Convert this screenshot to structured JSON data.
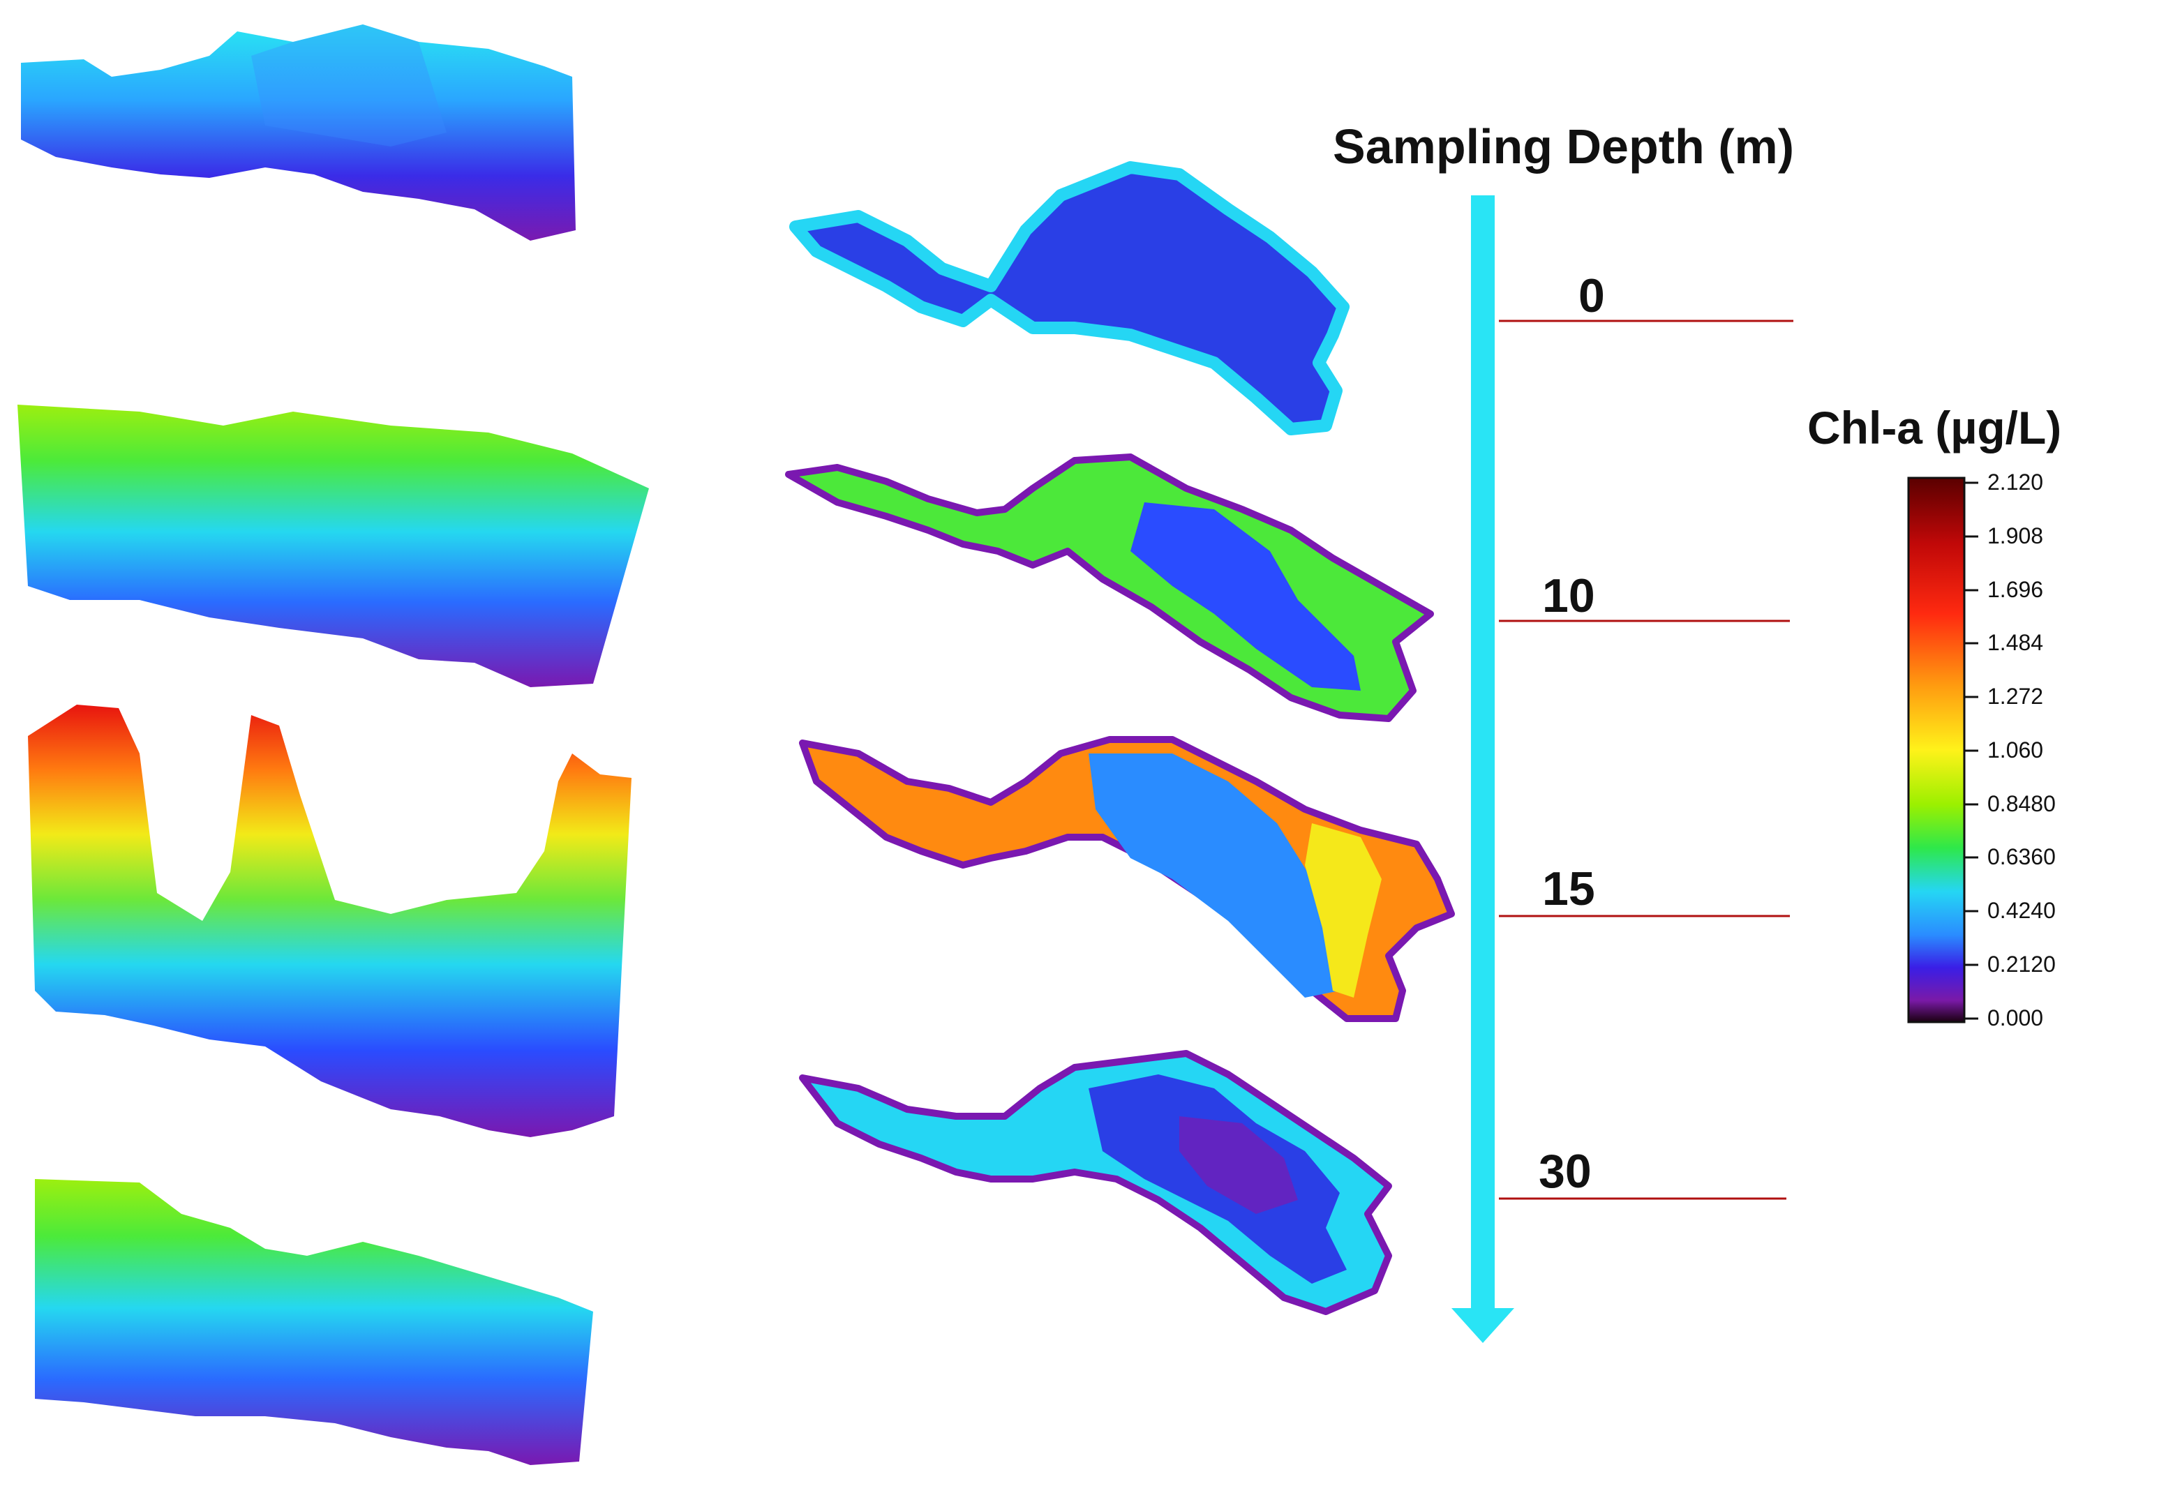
{
  "depth_axis": {
    "title": "Sampling Depth (m)",
    "levels": [
      {
        "label": "0"
      },
      {
        "label": "10"
      },
      {
        "label": "15"
      },
      {
        "label": "30"
      }
    ],
    "arrow_color": "#29e4f5",
    "line_color": "#b01010"
  },
  "legend": {
    "title": "Chl-a (µg/L)",
    "ticks": [
      "2.120",
      "1.908",
      "1.696",
      "1.484",
      "1.272",
      "1.060",
      "0.8480",
      "0.6360",
      "0.4240",
      "0.2120",
      "0.000"
    ],
    "colormap": [
      "#2a0020",
      "#7a1aa8",
      "#3a1ee6",
      "#1f86ff",
      "#25d6f4",
      "#1fe89a",
      "#4cee18",
      "#b8f000",
      "#fff21a",
      "#ff9a10",
      "#ff2a10",
      "#d60810",
      "#6a0000"
    ]
  }
}
